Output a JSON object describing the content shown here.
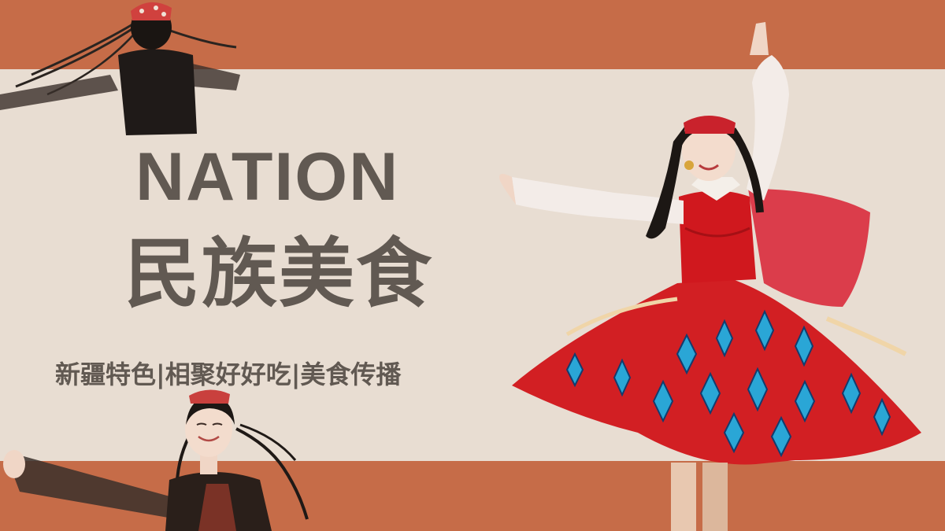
{
  "colors": {
    "band": "#c66c48",
    "panel": "#e8ddd2",
    "title": "#615952",
    "dress_red": "#d21f23",
    "dress_blue": "#2aa6d6",
    "skin": "#f0d6c6",
    "hair": "#1c1714",
    "sleeve": "#f3ece8"
  },
  "title_en": "NATION",
  "title_zh": "民族美食",
  "tagline": "新疆特色|相聚好好吃|美食传播",
  "images": {
    "top_left": "dancer-back-photo",
    "bottom_left": "smiling-dancer-photo",
    "right": "twirling-dancer-photo"
  }
}
